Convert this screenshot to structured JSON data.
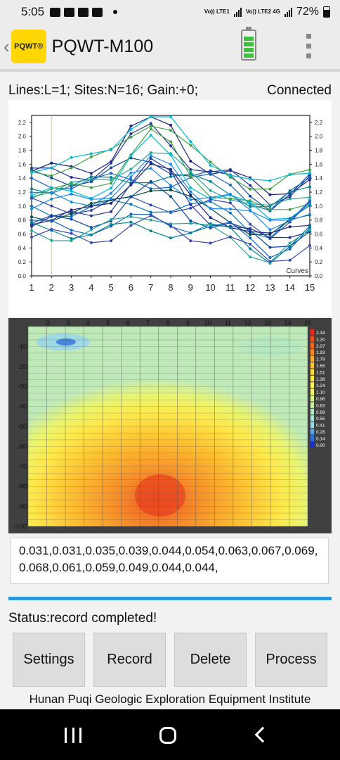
{
  "status_bar": {
    "time": "5:05",
    "net1": "Vo)) LTE1",
    "net2": "Vo)) LTE2 4G",
    "battery": "72%"
  },
  "app": {
    "back_icon": "‹",
    "logo_text": "PQWT®",
    "title": "PQWT-M100"
  },
  "info": {
    "params": "Lines:L=1;  Sites:N=16;  Gain:+0;",
    "connection": "Connected"
  },
  "curve_chart": {
    "y_ticks": [
      "0.0",
      "0.2",
      "0.4",
      "0.6",
      "0.8",
      "1.0",
      "1.2",
      "1.4",
      "1.6",
      "1.8",
      "2.0",
      "2.2"
    ],
    "x_ticks": [
      "1",
      "2",
      "3",
      "4",
      "5",
      "6",
      "7",
      "8",
      "9",
      "10",
      "11",
      "12",
      "13",
      "14",
      "15"
    ],
    "label": "Curves"
  },
  "heatmap": {
    "top_ticks": [
      "2",
      "3",
      "4",
      "5",
      "6",
      "7",
      "8",
      "9",
      "10",
      "11",
      "12",
      "13",
      "14",
      "15"
    ],
    "depth_ticks": [
      "-10",
      "-20",
      "-30",
      "-40",
      "-50",
      "-60",
      "-70",
      "-80",
      "-90",
      "-100"
    ],
    "legend_values": [
      "2.34",
      "2.20",
      "2.07",
      "1.93",
      "1.79",
      "1.65",
      "1.51",
      "1.38",
      "1.24",
      "1.10",
      "0.96",
      "0.83",
      "0.69",
      "0.55",
      "0.41",
      "0.28",
      "0.14",
      "0.00"
    ],
    "legend_colors": [
      "#e8281c",
      "#ee4a1c",
      "#f36a1e",
      "#f88a22",
      "#fbab2a",
      "#fdc532",
      "#fedc3c",
      "#feea46",
      "#fdf552",
      "#f2f76c",
      "#dff48a",
      "#c9eea6",
      "#b4e8c0",
      "#a6e2d6",
      "#9ad8e8",
      "#5aa8e6",
      "#2f70d8",
      "#1830c8"
    ]
  },
  "data_values": "0.031,0.031,0.035,0.039,0.044,0.054,0.063,0.067,0.069,0.068,0.061,0.059,0.049,0.044,0.044,",
  "status": "Status:record completed!",
  "buttons": {
    "settings": "Settings",
    "record": "Record",
    "delete": "Delete",
    "process": "Process"
  },
  "footer": "Hunan Puqi Geologic Exploration Equipment Institute"
}
